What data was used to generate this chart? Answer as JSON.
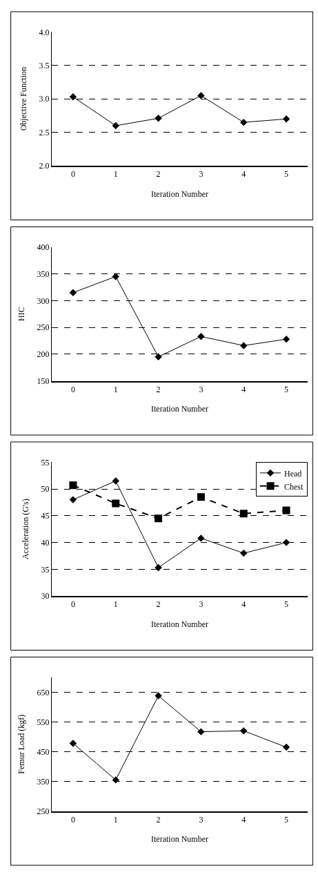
{
  "chart_data": [
    {
      "type": "line",
      "xlabel": "Iteration Number",
      "ylabel": "Objective Function",
      "categories": [
        "0",
        "1",
        "2",
        "3",
        "4",
        "5"
      ],
      "values": [
        3.03,
        2.6,
        2.71,
        3.05,
        2.65,
        2.7
      ],
      "color": "#000000",
      "marker": "diamond",
      "line_style": "solid",
      "grid": "y",
      "ylim": [
        2.0,
        4.0
      ],
      "yticks": [
        {
          "value": 2.0,
          "label": "2.0"
        },
        2.5,
        {
          "value": 3.0,
          "label": "3.0"
        },
        3.5,
        {
          "value": 4.0,
          "label": "4.0"
        }
      ]
    },
    {
      "type": "line",
      "xlabel": "Iteration Number",
      "ylabel": "HIC",
      "categories": [
        "0",
        "1",
        "2",
        "3",
        "4",
        "5"
      ],
      "values": [
        315,
        345,
        195,
        233,
        216,
        228
      ],
      "color": "#000000",
      "marker": "diamond",
      "line_style": "solid",
      "grid": "y",
      "ylim": [
        150,
        400
      ],
      "yticks": [
        150,
        200,
        250,
        300,
        350,
        400
      ]
    },
    {
      "type": "line",
      "xlabel": "Iteration Number",
      "ylabel": "Acceleration (G's)",
      "categories": [
        "0",
        "1",
        "2",
        "3",
        "4",
        "5"
      ],
      "legend": "top right",
      "grid": "y",
      "ylim": [
        30,
        55
      ],
      "yticks": [
        30,
        35,
        40,
        45,
        50,
        55
      ],
      "series": [
        {
          "name": "Head",
          "color": "#000000",
          "marker": "diamond",
          "line_style": "solid",
          "values": [
            48,
            51.5,
            35.3,
            40.8,
            38,
            40
          ]
        },
        {
          "name": "Chest",
          "color": "#000000",
          "marker": "square",
          "line_style": "dashed",
          "values": [
            50.7,
            47.3,
            44.5,
            48.5,
            45.4,
            46
          ]
        }
      ]
    },
    {
      "type": "line",
      "xlabel": "Iteration Number",
      "ylabel": "Femur Load (kgf)",
      "categories": [
        "0",
        "1",
        "2",
        "3",
        "4",
        "5"
      ],
      "values": [
        478,
        355,
        638,
        517,
        520,
        465
      ],
      "color": "#000000",
      "marker": "diamond",
      "line_style": "solid",
      "grid": "y",
      "ylim": [
        250,
        700
      ],
      "yticks": [
        250,
        350,
        450,
        550,
        650
      ]
    }
  ]
}
